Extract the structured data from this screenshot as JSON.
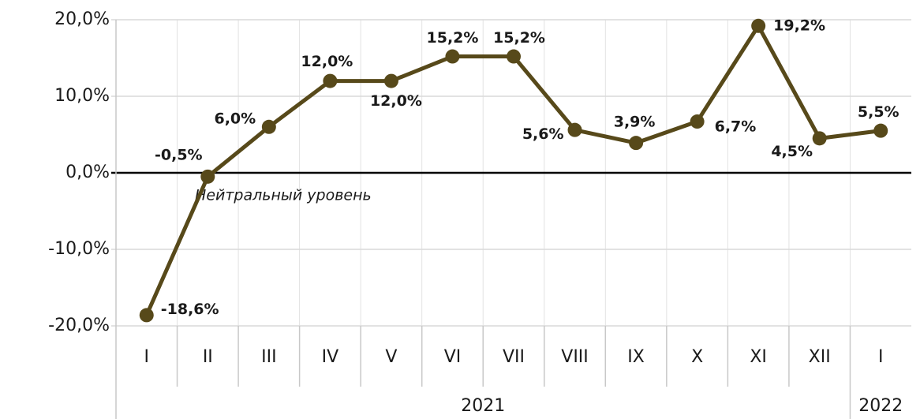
{
  "chart_data": {
    "type": "line",
    "categories": [
      "I",
      "II",
      "III",
      "IV",
      "V",
      "VI",
      "VII",
      "VIII",
      "IX",
      "X",
      "XI",
      "XII",
      "I"
    ],
    "groups": [
      {
        "label": "2021",
        "span": 12
      },
      {
        "label": "2022",
        "span": 1
      }
    ],
    "series": [
      {
        "name": null,
        "color": "#57491a",
        "values": [
          -18.6,
          -0.5,
          6.0,
          12.0,
          12.0,
          15.2,
          15.2,
          5.6,
          3.9,
          6.7,
          19.2,
          4.5,
          5.5
        ],
        "value_labels": [
          "-18,6%",
          "-0,5%",
          "6,0%",
          "12,0%",
          "12,0%",
          "15,2%",
          "15,2%",
          "5,6%",
          "3,9%",
          "6,7%",
          "19,2%",
          "4,5%",
          "5,5%"
        ]
      }
    ],
    "ylim": [
      -20,
      20
    ],
    "yticks": [
      {
        "value": -20,
        "label": "-20,0%"
      },
      {
        "value": -10,
        "label": "-10,0%"
      },
      {
        "value": 0,
        "label": "0,0%"
      },
      {
        "value": 10,
        "label": "10,0%"
      },
      {
        "value": 20,
        "label": "20,0%"
      }
    ],
    "annotations": [
      {
        "text": "Нейтральный уровень",
        "value": 0
      }
    ],
    "grid": true
  }
}
